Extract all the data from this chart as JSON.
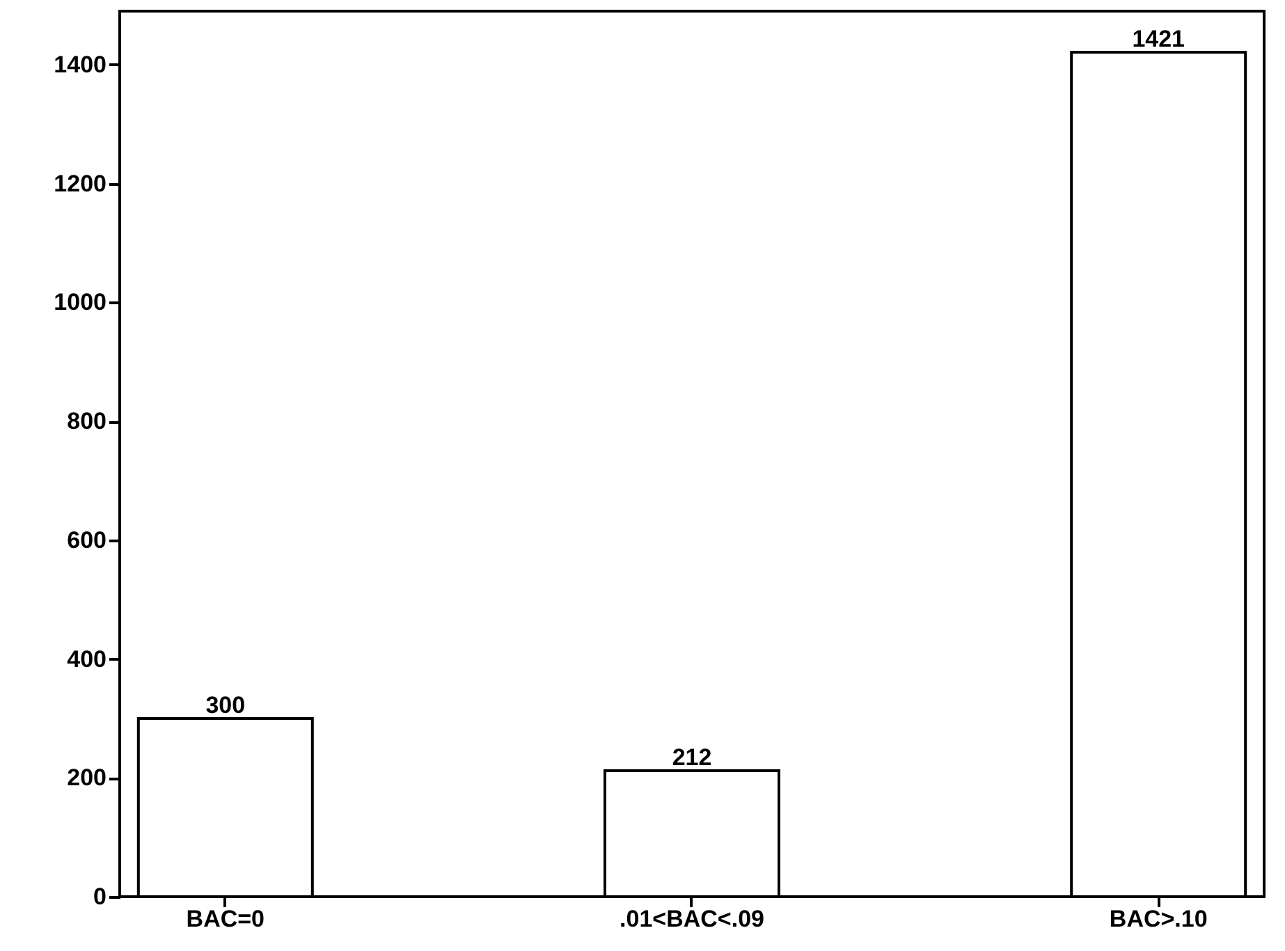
{
  "chart_data": {
    "type": "bar",
    "categories": [
      "BAC=0",
      ".01<BAC<.09",
      "BAC>.10"
    ],
    "values": [
      300,
      212,
      1421
    ],
    "color": "#ffffff",
    "ylim": [
      0,
      1490
    ],
    "yticks": [
      0,
      200,
      400,
      600,
      800,
      1000,
      1200,
      1400
    ],
    "grid": false,
    "data_labels": true
  }
}
